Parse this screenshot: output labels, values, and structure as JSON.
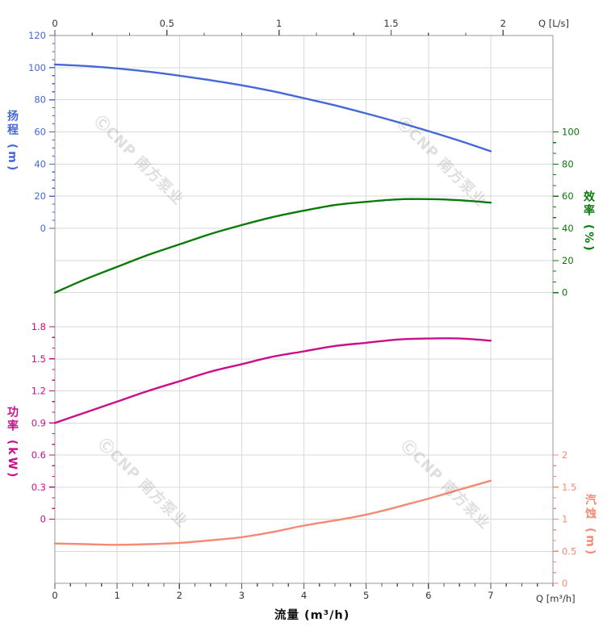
{
  "watermark": {
    "text": "ⒸCNP 南方泵业"
  },
  "colors": {
    "head": "#4468d8",
    "efficiency": "#0a7a0a",
    "power": "#cb0e8a",
    "npsh": "#f58a72",
    "grid": "#d9d9d9",
    "frame": "#9a9a9a",
    "axis_text": "#333333"
  },
  "top_axis": {
    "unit_label": "Q [L/s]",
    "ticks": [
      "0",
      "0.5",
      "1",
      "1.5",
      "2"
    ]
  },
  "bottom_axis": {
    "unit_label": "Q [m³/h]",
    "title": "流量 (m³/h)",
    "ticks": [
      "0",
      "1",
      "2",
      "3",
      "4",
      "5",
      "6",
      "7"
    ]
  },
  "head_axis": {
    "title": "扬程 (m)",
    "ticks": [
      "120",
      "100",
      "80",
      "60",
      "40",
      "20",
      "0"
    ]
  },
  "efficiency_axis": {
    "title": "效率 (%)",
    "ticks": [
      "100",
      "80",
      "60",
      "40",
      "20",
      "0"
    ]
  },
  "power_axis": {
    "title": "功率 (kW)",
    "ticks": [
      "1.8",
      "1.5",
      "1.2",
      "0.9",
      "0.6",
      "0.3",
      "0"
    ]
  },
  "npsh_axis": {
    "title": "汽蚀 (m)",
    "ticks": [
      "2",
      "1.5",
      "1",
      "0.5",
      "0"
    ]
  },
  "chart_data": {
    "type": "line",
    "title": "",
    "xlabel_bottom": "流量 (m³/h)",
    "xlabel_top": "Q [L/s]",
    "x_unit_bottom": "m³/h",
    "x_unit_top": "L/s",
    "xlim_m3h": [
      0,
      8
    ],
    "xlim_Ls": [
      0,
      2.2
    ],
    "grid": true,
    "x": [
      0,
      0.5,
      1,
      1.5,
      2,
      2.5,
      3,
      3.5,
      4,
      4.5,
      5,
      5.5,
      6,
      6.5,
      7
    ],
    "series": [
      {
        "name": "扬程",
        "unit": "m",
        "axis_side": "left",
        "ylim": [
          0,
          120
        ],
        "values": [
          102,
          101,
          99.5,
          97.5,
          95,
          92.2,
          89,
          85.3,
          81,
          76.5,
          71.5,
          66.2,
          60.5,
          54.5,
          48
        ]
      },
      {
        "name": "效率",
        "unit": "%",
        "axis_side": "right",
        "ylim": [
          0,
          100
        ],
        "values": [
          0,
          8.5,
          16,
          23.5,
          30,
          36.5,
          42,
          47,
          51,
          54.5,
          56.5,
          58,
          58.2,
          57.5,
          56
        ]
      },
      {
        "name": "功率",
        "unit": "kW",
        "axis_side": "left",
        "ylim": [
          0,
          1.8
        ],
        "values": [
          0.9,
          1.0,
          1.1,
          1.2,
          1.29,
          1.38,
          1.45,
          1.52,
          1.57,
          1.62,
          1.65,
          1.68,
          1.69,
          1.69,
          1.67
        ]
      },
      {
        "name": "汽蚀",
        "unit": "m",
        "axis_side": "right",
        "ylim": [
          0,
          2
        ],
        "values": [
          0.62,
          0.61,
          0.6,
          0.61,
          0.63,
          0.67,
          0.72,
          0.8,
          0.9,
          0.98,
          1.07,
          1.19,
          1.32,
          1.46,
          1.6
        ]
      }
    ]
  }
}
